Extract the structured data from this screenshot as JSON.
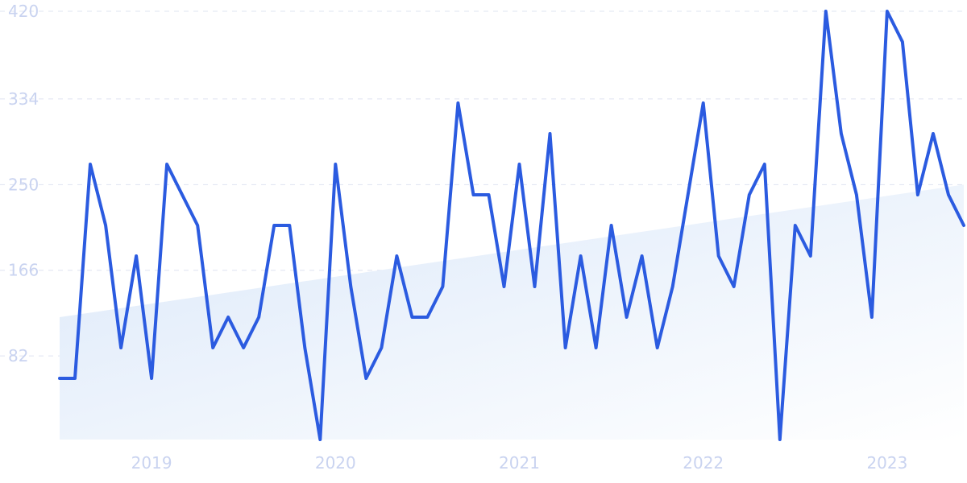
{
  "chart_data": {
    "type": "line",
    "x_start": "2018-07",
    "x_end": "2023-06",
    "xtick_labels": [
      "2019",
      "2020",
      "2021",
      "2022",
      "2023"
    ],
    "xtick_values": [
      "2019-01",
      "2020-01",
      "2021-01",
      "2022-01",
      "2023-01"
    ],
    "yticks": [
      82,
      166,
      250,
      334,
      420
    ],
    "ylim": [
      0,
      420
    ],
    "grid": true,
    "series": [
      {
        "color": "#2b5be0",
        "x": [
          "2018-07",
          "2018-08",
          "2018-09",
          "2018-10",
          "2018-11",
          "2018-12",
          "2019-01",
          "2019-02",
          "2019-03",
          "2019-04",
          "2019-05",
          "2019-06",
          "2019-07",
          "2019-08",
          "2019-09",
          "2019-10",
          "2019-11",
          "2019-12",
          "2020-01",
          "2020-02",
          "2020-03",
          "2020-04",
          "2020-05",
          "2020-06",
          "2020-07",
          "2020-08",
          "2020-09",
          "2020-10",
          "2020-11",
          "2020-12",
          "2021-01",
          "2021-02",
          "2021-03",
          "2021-04",
          "2021-05",
          "2021-06",
          "2021-07",
          "2021-08",
          "2021-09",
          "2021-10",
          "2021-11",
          "2021-12",
          "2022-01",
          "2022-02",
          "2022-03",
          "2022-04",
          "2022-05",
          "2022-06",
          "2022-07",
          "2022-08",
          "2022-09",
          "2022-10",
          "2022-11",
          "2022-12",
          "2023-01",
          "2023-02",
          "2023-03",
          "2023-04",
          "2023-05",
          "2023-06"
        ],
        "values": [
          60,
          60,
          270,
          210,
          90,
          180,
          60,
          270,
          240,
          210,
          90,
          120,
          90,
          120,
          210,
          210,
          90,
          0,
          270,
          150,
          60,
          90,
          180,
          120,
          120,
          150,
          330,
          240,
          240,
          150,
          270,
          150,
          300,
          90,
          180,
          90,
          210,
          120,
          180,
          90,
          150,
          240,
          330,
          180,
          150,
          240,
          270,
          0,
          210,
          180,
          420,
          300,
          240,
          120,
          420,
          390,
          240,
          300,
          240,
          210
        ]
      }
    ],
    "trend": {
      "color": "#e3edfb",
      "start_value": 120,
      "end_value": 250
    }
  }
}
